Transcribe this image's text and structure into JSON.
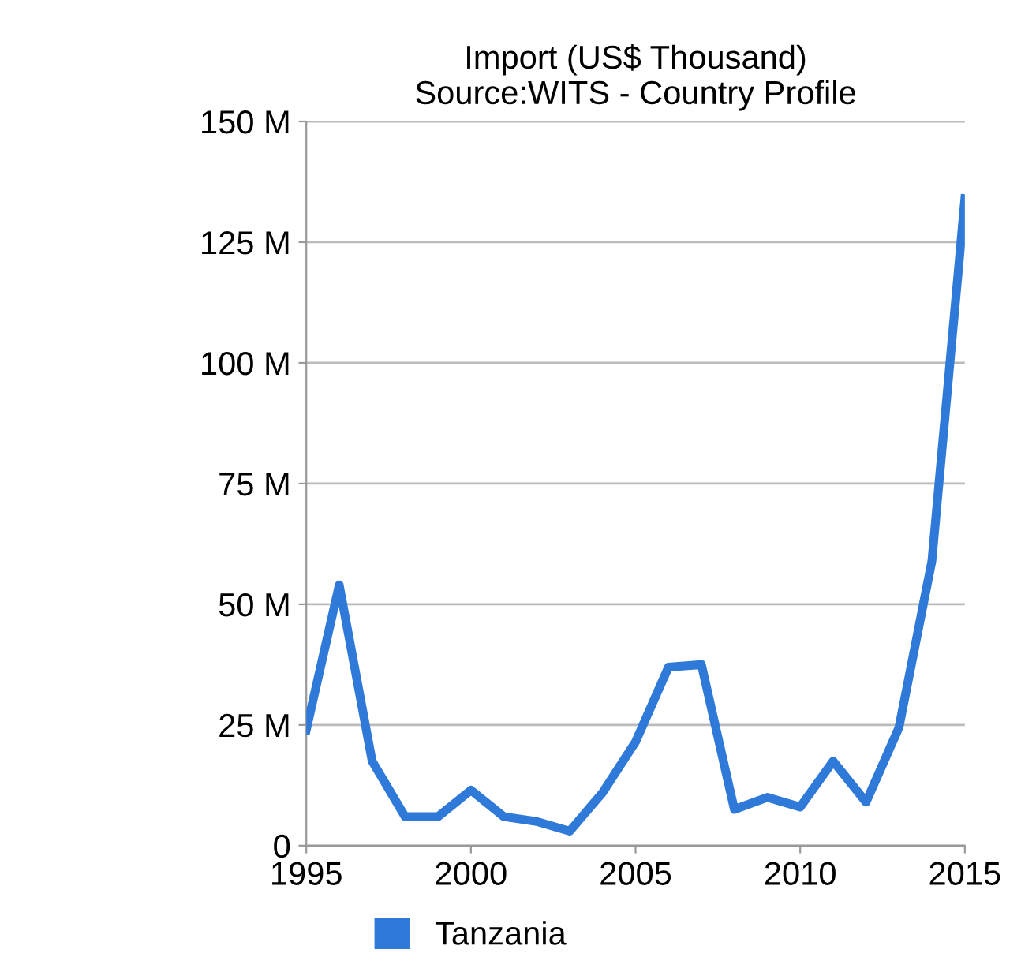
{
  "chart_data": {
    "type": "line",
    "title": "Import (US$ Thousand)\nSource:WITS - Country Profile",
    "x": [
      1995,
      1996,
      1997,
      1998,
      1999,
      2000,
      2001,
      2002,
      2003,
      2004,
      2005,
      2006,
      2007,
      2008,
      2009,
      2010,
      2011,
      2012,
      2013,
      2014,
      2015
    ],
    "series": [
      {
        "name": "Tanzania",
        "color": "#2f7ad8",
        "values": [
          24,
          54,
          17.5,
          6,
          6,
          11.5,
          6,
          5,
          3,
          11,
          21.5,
          37,
          37.5,
          7.5,
          10,
          8,
          17.5,
          9,
          24.5,
          59,
          134
        ]
      }
    ],
    "xlim": [
      1995,
      2015
    ],
    "xticks": [
      1995,
      2000,
      2005,
      2010,
      2015
    ],
    "ylim": [
      0,
      150
    ],
    "yticks": [
      0,
      {
        "value": 25,
        "label": "25 M"
      },
      {
        "value": 50,
        "label": "50 M"
      },
      {
        "value": 75,
        "label": "75 M"
      },
      {
        "value": 100,
        "label": "100 M"
      },
      {
        "value": 125,
        "label": "125 M"
      },
      {
        "value": 150,
        "label": "150 M"
      }
    ],
    "grid": "y",
    "legend": "bottom",
    "marker": "none",
    "line_style": "solid"
  }
}
